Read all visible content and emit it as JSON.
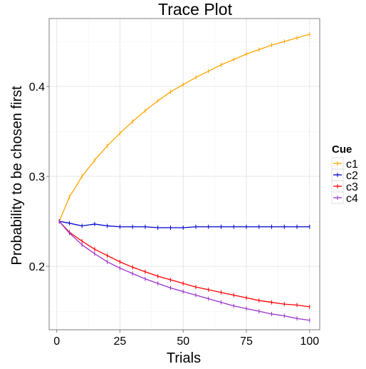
{
  "chart_data": {
    "type": "line",
    "title": "Trace Plot",
    "xlabel": "Trials",
    "ylabel": "Probability to be chosen first",
    "xlim": [
      -3,
      104
    ],
    "ylim": [
      0.1295,
      0.4755
    ],
    "xticks": [
      0,
      25,
      50,
      75,
      100
    ],
    "xtick_labels": [
      "0",
      "25",
      "50",
      "75",
      "100"
    ],
    "yticks": [
      0.2,
      0.3,
      0.4
    ],
    "ytick_labels": [
      "0.2",
      "0.3",
      "0.4"
    ],
    "grid": true,
    "legend": {
      "title": "Cue",
      "position": "right"
    },
    "x": [
      1,
      5,
      10,
      15,
      20,
      25,
      30,
      35,
      40,
      45,
      50,
      55,
      60,
      65,
      70,
      75,
      80,
      85,
      90,
      95,
      100
    ],
    "series": [
      {
        "name": "c1",
        "color": "#FFA500",
        "values": [
          0.25,
          0.277,
          0.3,
          0.318,
          0.334,
          0.348,
          0.361,
          0.373,
          0.384,
          0.394,
          0.402,
          0.41,
          0.417,
          0.424,
          0.43,
          0.436,
          0.441,
          0.446,
          0.45,
          0.454,
          0.458
        ]
      },
      {
        "name": "c2",
        "color": "#0000CD",
        "values": [
          0.25,
          0.248,
          0.245,
          0.247,
          0.245,
          0.244,
          0.244,
          0.244,
          0.243,
          0.243,
          0.243,
          0.244,
          0.244,
          0.244,
          0.244,
          0.244,
          0.244,
          0.244,
          0.244,
          0.244,
          0.244
        ]
      },
      {
        "name": "c3",
        "color": "#FF0000",
        "values": [
          0.25,
          0.238,
          0.228,
          0.219,
          0.212,
          0.205,
          0.199,
          0.194,
          0.189,
          0.185,
          0.181,
          0.177,
          0.174,
          0.171,
          0.168,
          0.165,
          0.162,
          0.16,
          0.158,
          0.157,
          0.155
        ]
      },
      {
        "name": "c4",
        "color": "#9932CC",
        "values": [
          0.25,
          0.237,
          0.224,
          0.214,
          0.205,
          0.198,
          0.192,
          0.186,
          0.181,
          0.176,
          0.172,
          0.168,
          0.164,
          0.16,
          0.156,
          0.153,
          0.15,
          0.147,
          0.145,
          0.142,
          0.14
        ]
      }
    ]
  }
}
